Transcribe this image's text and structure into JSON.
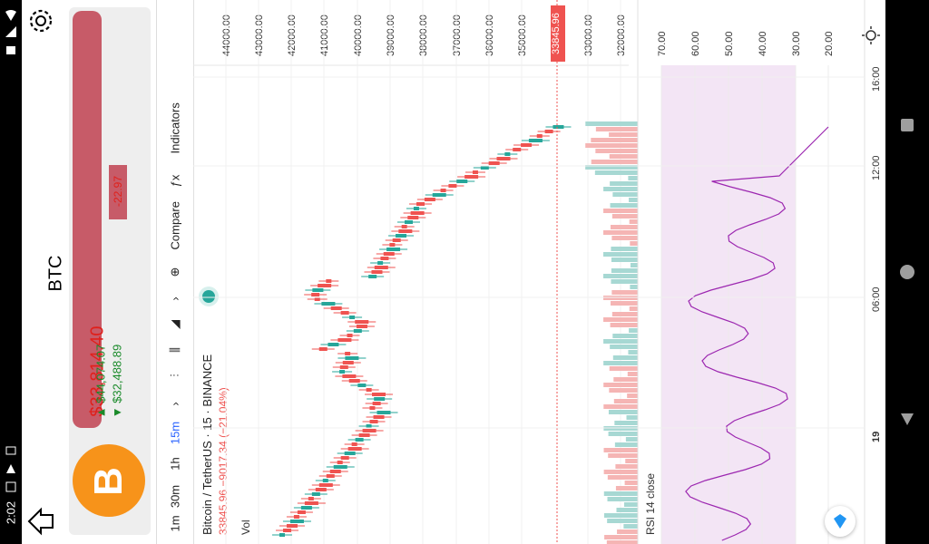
{
  "status": {
    "time": "2:02"
  },
  "app": {
    "coin_title": "BTC"
  },
  "ticker": {
    "price": "$33,814.40",
    "high": "▲ $44,074.07",
    "low": "▼ $32,488.89",
    "change": "-22.97",
    "coin_symbol": "B"
  },
  "chart": {
    "intervals": [
      "1m",
      "30m",
      "1h",
      "15m"
    ],
    "active_interval": "15m",
    "compare_label": "Compare",
    "indicators_label": "Indicators",
    "symbol_line": "Bitcoin / TetherUS · 15 · BINANCE",
    "price_line": "33845.96  −9017.34 (−21.04%)",
    "vol_label": "Vol",
    "rsi_label": "RSI 14 close",
    "current_price_tag": "33845.96",
    "price_ticks": [
      "44000.00",
      "43000.00",
      "42000.00",
      "41000.00",
      "40000.00",
      "39000.00",
      "38000.00",
      "37000.00",
      "36000.00",
      "35000.00",
      "33000.00",
      "32000.00"
    ],
    "rsi_ticks": [
      "70.00",
      "60.00",
      "50.00",
      "40.00",
      "30.00",
      "20.00"
    ],
    "time_ticks": [
      "16:00",
      "12:00",
      "06:00",
      "19"
    ],
    "colors": {
      "up": "#26a69a",
      "down": "#ef5350",
      "rsi": "#9c27b0",
      "rsi_band": "#f3e5f5"
    }
  }
}
